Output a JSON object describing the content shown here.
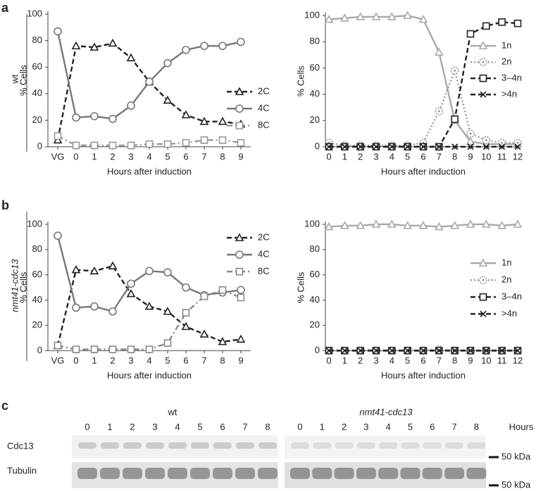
{
  "panels": [
    {
      "label": "a",
      "strain": "wt"
    },
    {
      "label": "b",
      "strain": "nmt41-cdc13"
    }
  ],
  "chart_data": [
    {
      "type": "line",
      "xlabel": "Hours after induction",
      "ylabel": "% Cells",
      "categories": [
        "VG",
        "0",
        "1",
        "2",
        "3",
        "4",
        "5",
        "6",
        "7",
        "8",
        "9"
      ],
      "ylim": [
        0,
        100
      ],
      "yticks": [
        0,
        20,
        40,
        60,
        80,
        100
      ],
      "series": [
        {
          "name": "2C",
          "color": "#222222",
          "dash": "dashed",
          "marker": "triangle",
          "values": [
            5,
            76,
            75,
            78,
            67,
            49,
            35,
            24,
            19,
            19,
            17
          ]
        },
        {
          "name": "4C",
          "color": "#777777",
          "dash": "solid",
          "marker": "circle",
          "values": [
            87,
            22,
            23,
            21,
            31,
            49,
            63,
            73,
            76,
            76,
            79
          ]
        },
        {
          "name": "8C",
          "color": "#999999",
          "dash": "dashdot",
          "marker": "square",
          "values": [
            8,
            1,
            1,
            1,
            1,
            2,
            2,
            3,
            5,
            5,
            3
          ]
        }
      ]
    },
    {
      "type": "line",
      "xlabel": "Hours after induction",
      "ylabel": "% Cells",
      "categories": [
        "0",
        "1",
        "2",
        "3",
        "4",
        "5",
        "6",
        "7",
        "8",
        "9",
        "10",
        "11",
        "12"
      ],
      "ylim": [
        0,
        100
      ],
      "yticks": [
        0,
        20,
        40,
        60,
        80,
        100
      ],
      "series": [
        {
          "name": "1n",
          "color": "#aaaaaa",
          "dash": "solid",
          "marker": "triangle",
          "values": [
            97,
            98,
            99,
            99,
            99,
            100,
            97,
            72,
            20,
            4,
            2,
            2,
            2
          ]
        },
        {
          "name": "2n",
          "color": "#999999",
          "dash": "dotted",
          "marker": "dotcircle",
          "values": [
            3,
            1,
            1,
            1,
            1,
            1,
            3,
            27,
            58,
            10,
            5,
            3,
            3
          ]
        },
        {
          "name": "3–4n",
          "color": "#222222",
          "dash": "dashed",
          "marker": "square",
          "values": [
            0,
            0,
            0,
            0,
            0,
            0,
            0,
            0,
            21,
            86,
            92,
            95,
            94
          ]
        },
        {
          "name": ">4n",
          "color": "#222222",
          "dash": "dashed",
          "marker": "cross",
          "values": [
            0,
            0,
            0,
            0,
            0,
            0,
            0,
            0,
            0,
            0,
            0,
            0,
            0
          ]
        }
      ]
    },
    {
      "type": "line",
      "xlabel": "Hours after induction",
      "ylabel": "% Cells",
      "categories": [
        "VG",
        "0",
        "1",
        "2",
        "3",
        "4",
        "5",
        "6",
        "7",
        "8",
        "9"
      ],
      "ylim": [
        0,
        100
      ],
      "yticks": [
        0,
        20,
        40,
        60,
        80,
        100
      ],
      "series": [
        {
          "name": "2C",
          "color": "#222222",
          "dash": "dashed",
          "marker": "triangle",
          "values": [
            4,
            64,
            63,
            67,
            45,
            35,
            31,
            19,
            13,
            7,
            9
          ]
        },
        {
          "name": "4C",
          "color": "#777777",
          "dash": "solid",
          "marker": "circle",
          "values": [
            91,
            34,
            35,
            31,
            53,
            63,
            62,
            50,
            44,
            46,
            48
          ]
        },
        {
          "name": "8C",
          "color": "#888888",
          "dash": "dashdot",
          "marker": "square",
          "values": [
            4,
            1,
            1,
            1,
            1,
            1,
            6,
            30,
            43,
            48,
            42
          ]
        }
      ]
    },
    {
      "type": "line",
      "xlabel": "Hours after induction",
      "ylabel": "% Cells",
      "categories": [
        "0",
        "1",
        "2",
        "3",
        "4",
        "5",
        "6",
        "7",
        "8",
        "9",
        "10",
        "11",
        "12"
      ],
      "ylim": [
        0,
        100
      ],
      "yticks": [
        0,
        20,
        40,
        60,
        80,
        100
      ],
      "series": [
        {
          "name": "1n",
          "color": "#aaaaaa",
          "dash": "solid",
          "marker": "triangle",
          "values": [
            98,
            99,
            99,
            100,
            100,
            99,
            99,
            98,
            99,
            100,
            100,
            99,
            100
          ]
        },
        {
          "name": "2n",
          "color": "#999999",
          "dash": "dotted",
          "marker": "dotcircle",
          "values": [
            0,
            0,
            0,
            0,
            0,
            0,
            0,
            1,
            0,
            0,
            0,
            0,
            0
          ]
        },
        {
          "name": "3–4n",
          "color": "#222222",
          "dash": "dashed",
          "marker": "square",
          "values": [
            0,
            0,
            0,
            0,
            0,
            0,
            0,
            0,
            0,
            0,
            0,
            0,
            0
          ]
        },
        {
          "name": ">4n",
          "color": "#222222",
          "dash": "dashed",
          "marker": "cross",
          "values": [
            0,
            0,
            0,
            0,
            0,
            0,
            0,
            0,
            0,
            0,
            0,
            0,
            0
          ]
        }
      ]
    }
  ],
  "blot": {
    "label": "c",
    "time_label": "Hours",
    "size_marker": "50 kDa",
    "rows": [
      "Cdc13",
      "Tubulin"
    ],
    "groups": [
      {
        "label": "wt",
        "lanes": [
          "0",
          "1",
          "2",
          "3",
          "4",
          "5",
          "6",
          "7",
          "8"
        ]
      },
      {
        "label": "nmt41-cdc13",
        "lanes": [
          "0",
          "1",
          "2",
          "3",
          "4",
          "5",
          "6",
          "7",
          "8"
        ]
      }
    ]
  }
}
